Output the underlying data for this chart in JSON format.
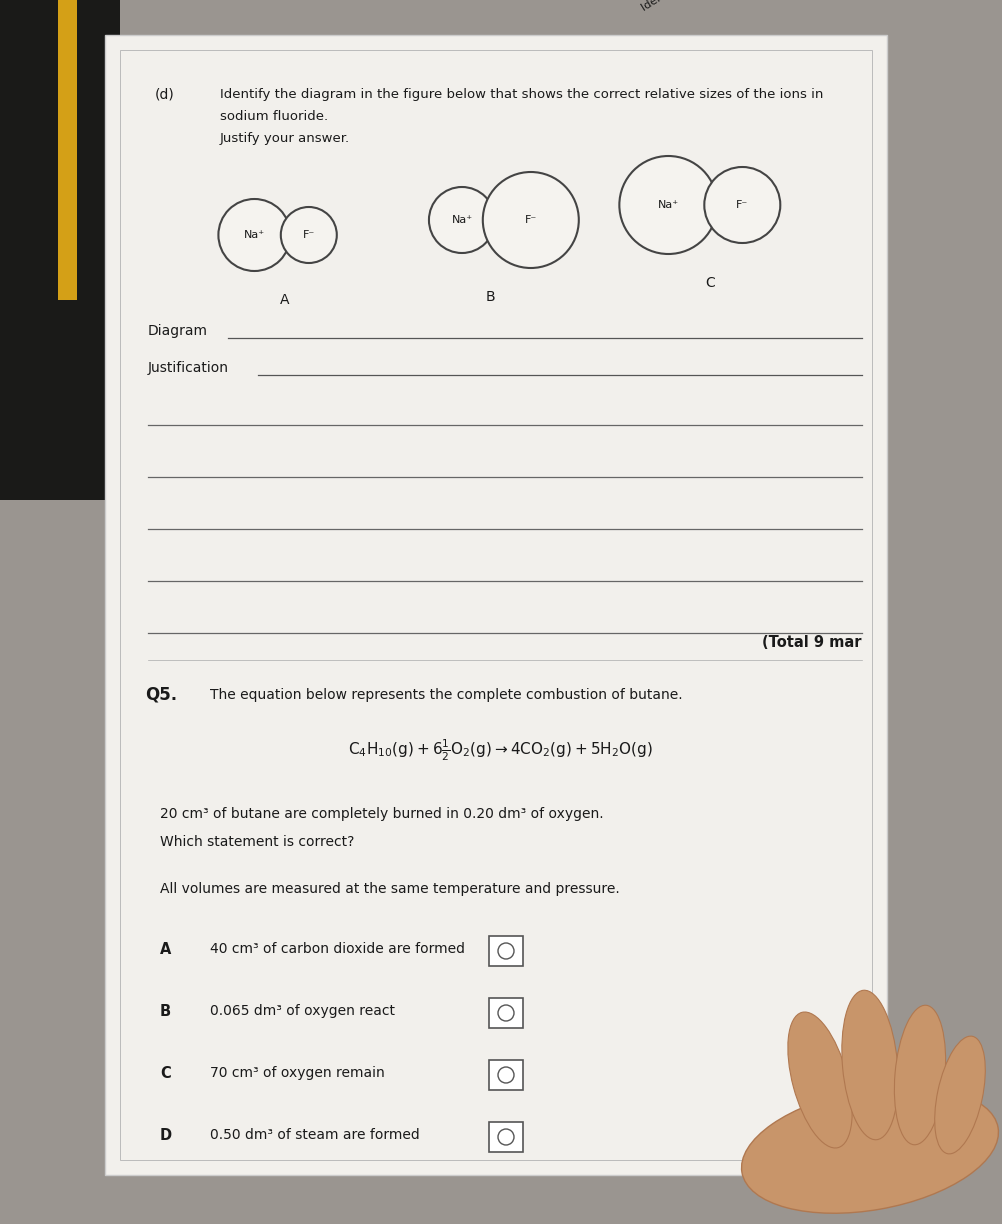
{
  "bg_color": "#9a9590",
  "paper_color": "#f0eeea",
  "text_color": "#1a1a1a",
  "line_color": "#777777",
  "circle_edge": "#444444",
  "circle_fill": "#f4f2ee",
  "header_rotated": "Identify the diagram in the figure below that shows the correct relative sizes of the ions in",
  "part_d": "(d)",
  "part_d_line1": "Identify the diagram in the figure below that shows the correct relative sizes of the ions in",
  "part_d_line2": "sodium fluoride.",
  "part_d_line3": "Justify your answer.",
  "diagram_label": "Diagram",
  "justification_label": "Justification",
  "total_marks": "(Total 9 mar",
  "q5": "Q5.",
  "q5_intro": "The equation below represents the complete combustion of butane.",
  "scenario1": "20 cm³ of butane are completely burned in 0.20 dm³ of oxygen.",
  "scenario2": "Which statement is correct?",
  "condition": "All volumes are measured at the same temperature and pressure.",
  "options": [
    {
      "letter": "A",
      "text": "40 cm³ of carbon dioxide are formed"
    },
    {
      "letter": "B",
      "text": "0.065 dm³ of oxygen react"
    },
    {
      "letter": "C",
      "text": "70 cm³ of oxygen remain"
    },
    {
      "letter": "D",
      "text": "0.50 dm³ of steam are formed"
    }
  ],
  "diag_A_na_r": 0.38,
  "diag_A_f_r": 0.3,
  "diag_B_na_r": 0.35,
  "diag_B_f_r": 0.5,
  "diag_C_na_r": 0.52,
  "diag_C_f_r": 0.4
}
